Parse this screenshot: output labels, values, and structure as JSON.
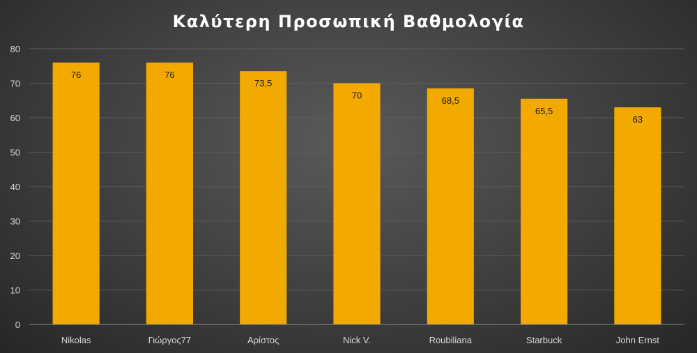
{
  "chart_data": {
    "type": "bar",
    "title": "Καλύτερη Προσωπική Βαθμολογία",
    "categories": [
      "Nikolas",
      "Γιώργος77",
      "Αρίστος",
      "Nick V.",
      "Roubiliana",
      "Starbuck",
      "John Ernst"
    ],
    "values": [
      76,
      76,
      73.5,
      70,
      68.5,
      65.5,
      63
    ],
    "data_labels": [
      "76",
      "76",
      "73,5",
      "70",
      "68,5",
      "65,5",
      "63"
    ],
    "yticks": [
      "0",
      "10",
      "20",
      "30",
      "40",
      "50",
      "60",
      "70",
      "80"
    ],
    "ylim": [
      0,
      80
    ],
    "grid": true,
    "legend": "none",
    "bar_color": "#f2a900"
  }
}
